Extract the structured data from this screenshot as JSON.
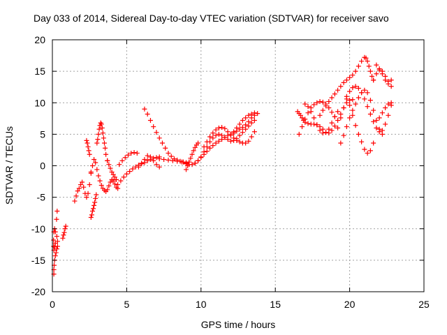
{
  "chart_data": {
    "type": "scatter",
    "title": "Day 033 of 2014, Sidereal Day-to-day VTEC variation (SDTVAR) for receiver savo",
    "xlabel": "GPS time / hours",
    "ylabel": "SDTVAR / TECUs",
    "xlim": [
      0,
      25
    ],
    "ylim": [
      -20,
      20
    ],
    "xticks": [
      "0",
      "5",
      "10",
      "15",
      "20",
      "25"
    ],
    "yticks": [
      "-20",
      "-15",
      "-10",
      "-5",
      "0",
      "5",
      "10",
      "15",
      "20"
    ],
    "grid": true,
    "marker": "+",
    "color": "#ff0000",
    "series": [
      {
        "x": [
          0.1,
          0.1,
          0.12,
          0.15,
          0.2,
          0.25,
          0.3,
          0.35,
          0.35,
          0.3,
          0.2,
          0.15,
          0.1,
          0.08,
          0.08,
          0.1,
          0.15,
          0.2,
          0.28,
          0.32
        ],
        "y": [
          -17.2,
          -16.5,
          -15.8,
          -15.0,
          -14.3,
          -13.8,
          -13.2,
          -12.8,
          -12.0,
          -11.2,
          -10.5,
          -10.0,
          -10.5,
          -11.8,
          -12.8,
          -13.4,
          -12.9,
          -12.3,
          -8.5,
          -7.2
        ]
      },
      {
        "x": [
          0.7,
          0.75,
          0.8,
          0.85,
          0.9
        ],
        "y": [
          -11.5,
          -11.0,
          -10.6,
          -10.0,
          -9.6
        ]
      },
      {
        "x": [
          1.5,
          1.6,
          1.7,
          1.8,
          1.9,
          2.0,
          2.1,
          2.2,
          2.3,
          2.4,
          2.5,
          2.6
        ],
        "y": [
          -5.6,
          -4.8,
          -4.0,
          -3.6,
          -3.0,
          -2.6,
          -3.4,
          -4.4,
          -5.0,
          -4.4,
          -3.0,
          -1.2
        ]
      },
      {
        "x": [
          2.3,
          2.35,
          2.4,
          2.45,
          2.5
        ],
        "y": [
          4.0,
          3.6,
          3.0,
          2.4,
          1.8
        ]
      },
      {
        "x": [
          2.6,
          2.65,
          2.7,
          2.75,
          2.8,
          2.85,
          2.9,
          2.95
        ],
        "y": [
          -8.2,
          -7.8,
          -7.2,
          -6.8,
          -6.3,
          -5.8,
          -5.2,
          -4.6
        ]
      },
      {
        "x": [
          2.6,
          2.7,
          2.8,
          2.9,
          3.0,
          3.1,
          3.2,
          3.3,
          3.4,
          3.5,
          3.6,
          3.7,
          3.8,
          3.9,
          4.0,
          4.1,
          4.2,
          4.3,
          4.4
        ],
        "y": [
          -1.0,
          0.0,
          1.0,
          0.5,
          -0.6,
          -1.6,
          -2.4,
          -3.1,
          -3.6,
          -3.9,
          -4.1,
          -3.8,
          -3.2,
          -2.6,
          -2.2,
          -2.4,
          -2.9,
          -3.4,
          -3.6
        ]
      },
      {
        "x": [
          3.0,
          3.05,
          3.1,
          3.15,
          3.2,
          3.25,
          3.3,
          3.35,
          3.4,
          3.45,
          3.5,
          3.55,
          3.6,
          3.7
        ],
        "y": [
          3.6,
          4.2,
          5.0,
          5.8,
          6.4,
          6.8,
          6.6,
          6.0,
          5.2,
          4.4,
          3.6,
          2.8,
          1.8,
          0.8
        ]
      },
      {
        "x": [
          3.7,
          3.8,
          3.9,
          4.0,
          4.1,
          4.2,
          4.3
        ],
        "y": [
          0.8,
          0.2,
          -0.4,
          -1.0,
          -1.4,
          -1.8,
          -2.2
        ]
      },
      {
        "x": [
          4.4,
          4.6,
          4.8,
          5.0,
          5.2,
          5.4,
          5.6,
          5.8,
          6.0,
          6.2,
          6.4,
          6.6,
          6.8,
          7.0,
          7.2
        ],
        "y": [
          -3.0,
          -2.4,
          -1.8,
          -1.3,
          -0.9,
          -0.5,
          -0.2,
          0.1,
          0.3,
          0.5,
          0.8,
          1.0,
          1.2,
          1.3,
          1.4
        ]
      },
      {
        "x": [
          4.5,
          4.7,
          4.9,
          5.1,
          5.3,
          5.5,
          5.7
        ],
        "y": [
          0.2,
          0.8,
          1.3,
          1.7,
          2.0,
          2.1,
          2.0
        ]
      },
      {
        "x": [
          5.8,
          6.0,
          6.2,
          6.4,
          6.6,
          6.8,
          7.0,
          7.2
        ],
        "y": [
          -0.2,
          0.4,
          1.0,
          1.6,
          1.4,
          0.8,
          0.2,
          -0.2
        ]
      },
      {
        "x": [
          6.2,
          6.4,
          6.6,
          6.8,
          7.0,
          7.2,
          7.4,
          7.6,
          7.8,
          8.0,
          8.2,
          8.4,
          8.6,
          8.8,
          9.0,
          9.2
        ],
        "y": [
          9.0,
          8.2,
          7.2,
          6.2,
          5.3,
          4.4,
          3.6,
          2.8,
          2.0,
          1.5,
          1.1,
          0.9,
          0.7,
          0.6,
          0.5,
          0.6
        ]
      },
      {
        "x": [
          7.2,
          7.5,
          7.8,
          8.1,
          8.4,
          8.7,
          9.0
        ],
        "y": [
          1.1,
          1.0,
          0.9,
          0.8,
          0.7,
          0.6,
          0.4
        ]
      },
      {
        "x": [
          9.0,
          9.1,
          9.2,
          9.3,
          9.4,
          9.5,
          9.6,
          9.7,
          9.8
        ],
        "y": [
          -0.6,
          0.0,
          0.6,
          1.2,
          1.8,
          2.4,
          2.9,
          3.3,
          3.6
        ]
      },
      {
        "x": [
          8.8,
          9.0,
          9.2,
          9.4,
          9.6,
          9.8,
          10.0,
          10.2,
          10.4,
          10.6,
          10.8,
          11.0,
          11.2,
          11.4,
          11.6,
          11.8,
          12.0,
          12.2,
          12.4,
          12.6,
          12.8,
          13.0,
          13.2,
          13.4,
          13.6,
          13.8
        ],
        "y": [
          0.6,
          0.3,
          0.2,
          0.2,
          0.4,
          0.8,
          1.3,
          1.8,
          2.3,
          2.8,
          3.2,
          3.6,
          3.9,
          4.2,
          4.5,
          4.8,
          5.0,
          5.2,
          5.5,
          5.8,
          6.1,
          6.5,
          7.0,
          7.6,
          8.0,
          8.3
        ]
      },
      {
        "x": [
          9.6,
          9.8,
          10.0,
          10.2,
          10.4,
          10.6,
          10.8,
          11.0,
          11.2,
          11.4,
          11.6,
          11.8,
          12.0,
          12.2,
          12.4,
          12.6,
          12.8,
          13.0,
          13.2,
          13.4,
          13.6
        ],
        "y": [
          0.4,
          0.8,
          1.4,
          2.2,
          3.0,
          3.8,
          4.4,
          4.8,
          5.0,
          4.8,
          4.5,
          4.2,
          3.9,
          4.0,
          4.3,
          4.8,
          5.3,
          5.8,
          6.3,
          6.8,
          7.2
        ]
      },
      {
        "x": [
          10.2,
          10.4,
          10.6,
          10.8,
          11.0,
          11.2,
          11.4,
          11.6,
          11.8,
          12.0,
          12.2,
          12.4,
          12.6,
          12.8,
          13.0,
          13.2,
          13.4,
          13.6
        ],
        "y": [
          3.0,
          3.8,
          4.6,
          5.2,
          5.7,
          6.0,
          6.1,
          5.9,
          5.4,
          4.8,
          4.4,
          4.0,
          3.8,
          3.6,
          3.6,
          3.9,
          4.6,
          5.4
        ]
      },
      {
        "x": [
          12.2,
          12.4,
          12.6,
          12.8,
          13.0,
          13.2,
          13.4,
          13.6
        ],
        "y": [
          5.4,
          6.0,
          6.6,
          7.2,
          7.6,
          8.0,
          8.2,
          8.4
        ]
      },
      {
        "x": [
          16.5,
          16.6,
          16.7,
          16.8,
          16.9,
          17.0,
          17.2,
          17.4,
          17.6,
          17.8,
          18.0,
          18.2,
          18.4,
          18.6,
          18.8,
          19.0,
          19.2,
          19.4,
          19.6,
          19.8,
          20.0,
          20.2
        ],
        "y": [
          8.6,
          8.3,
          8.0,
          7.6,
          7.2,
          6.9,
          6.7,
          6.6,
          6.6,
          6.5,
          6.2,
          5.8,
          5.3,
          5.2,
          5.6,
          6.3,
          7.2,
          8.2,
          9.2,
          10.0,
          10.4,
          10.5
        ]
      },
      {
        "x": [
          16.6,
          16.8,
          17.0,
          17.2,
          17.4,
          17.6,
          17.8,
          18.0,
          18.2,
          18.4,
          18.6,
          18.8,
          19.0
        ],
        "y": [
          5.0,
          6.2,
          7.4,
          8.4,
          9.2,
          9.7,
          10.0,
          10.2,
          10.1,
          9.8,
          9.2,
          8.5,
          7.8
        ]
      },
      {
        "x": [
          17.0,
          17.2,
          17.4,
          17.6,
          17.8,
          18.0,
          18.2,
          18.4,
          18.6,
          18.8,
          19.0,
          19.2
        ],
        "y": [
          9.8,
          9.4,
          8.6,
          7.6,
          6.5,
          5.6,
          5.2,
          5.3,
          5.8,
          6.8,
          7.8,
          8.6
        ]
      },
      {
        "x": [
          18.0,
          18.2,
          18.4,
          18.6,
          18.8,
          19.0,
          19.2,
          19.4,
          19.6,
          19.8,
          20.0,
          20.2,
          20.4,
          20.6,
          20.8,
          21.0,
          21.1,
          21.2,
          21.3,
          21.4,
          21.5,
          21.6
        ],
        "y": [
          8.0,
          8.8,
          9.5,
          10.2,
          10.8,
          11.4,
          12.0,
          12.6,
          13.2,
          13.6,
          14.0,
          14.4,
          15.0,
          15.8,
          16.6,
          17.2,
          17.1,
          16.6,
          15.8,
          15.0,
          14.2,
          13.6
        ]
      },
      {
        "x": [
          19.2,
          19.4,
          19.6,
          19.8,
          20.0,
          20.2,
          20.4,
          20.6,
          20.8,
          21.0,
          21.2,
          21.4,
          21.6,
          21.8,
          22.0,
          22.2,
          22.4,
          22.6,
          22.8
        ],
        "y": [
          6.0,
          7.6,
          9.2,
          10.6,
          11.8,
          12.4,
          12.6,
          12.3,
          11.6,
          10.6,
          9.4,
          8.2,
          7.0,
          6.0,
          5.4,
          5.6,
          6.6,
          8.0,
          9.6
        ]
      },
      {
        "x": [
          19.4,
          19.6,
          19.8,
          20.0,
          20.2,
          20.4,
          20.6,
          20.8,
          21.0,
          21.2,
          21.4,
          21.6,
          21.8,
          22.0,
          22.2
        ],
        "y": [
          3.6,
          4.8,
          6.2,
          7.6,
          8.8,
          9.8,
          10.8,
          11.6,
          12.0,
          11.6,
          10.4,
          8.8,
          7.2,
          5.8,
          5.0
        ]
      },
      {
        "x": [
          19.8,
          20.0,
          20.2,
          20.4,
          20.6,
          20.8,
          21.0,
          21.2,
          21.4,
          21.6
        ],
        "y": [
          11.0,
          9.6,
          8.0,
          6.4,
          5.0,
          3.8,
          2.6,
          2.0,
          2.4,
          3.6
        ]
      },
      {
        "x": [
          21.6,
          21.8,
          22.0,
          22.2,
          22.4,
          22.6,
          22.8
        ],
        "y": [
          13.6,
          14.6,
          15.2,
          15.0,
          14.2,
          13.4,
          12.6
        ]
      },
      {
        "x": [
          21.8,
          22.0,
          22.2,
          22.4,
          22.6,
          22.8
        ],
        "y": [
          16.0,
          15.4,
          14.6,
          13.6,
          13.0,
          13.6
        ]
      },
      {
        "x": [
          22.0,
          22.2,
          22.4,
          22.6,
          22.8
        ],
        "y": [
          7.6,
          8.4,
          9.2,
          9.8,
          10.0
        ]
      }
    ]
  }
}
